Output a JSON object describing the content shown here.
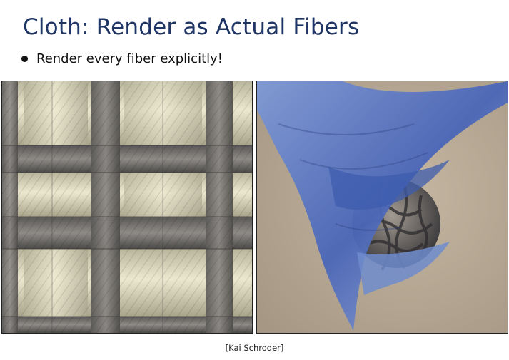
{
  "slide": {
    "title": "Cloth: Render as Actual Fibers",
    "bullet": "Render every fiber explicitly!",
    "caption": "[Kai Schroder]"
  },
  "images": {
    "left": {
      "subject": "woven-fabric-closeup"
    },
    "right": {
      "subject": "blue-cloth-draped-over-lattice-sphere"
    }
  }
}
